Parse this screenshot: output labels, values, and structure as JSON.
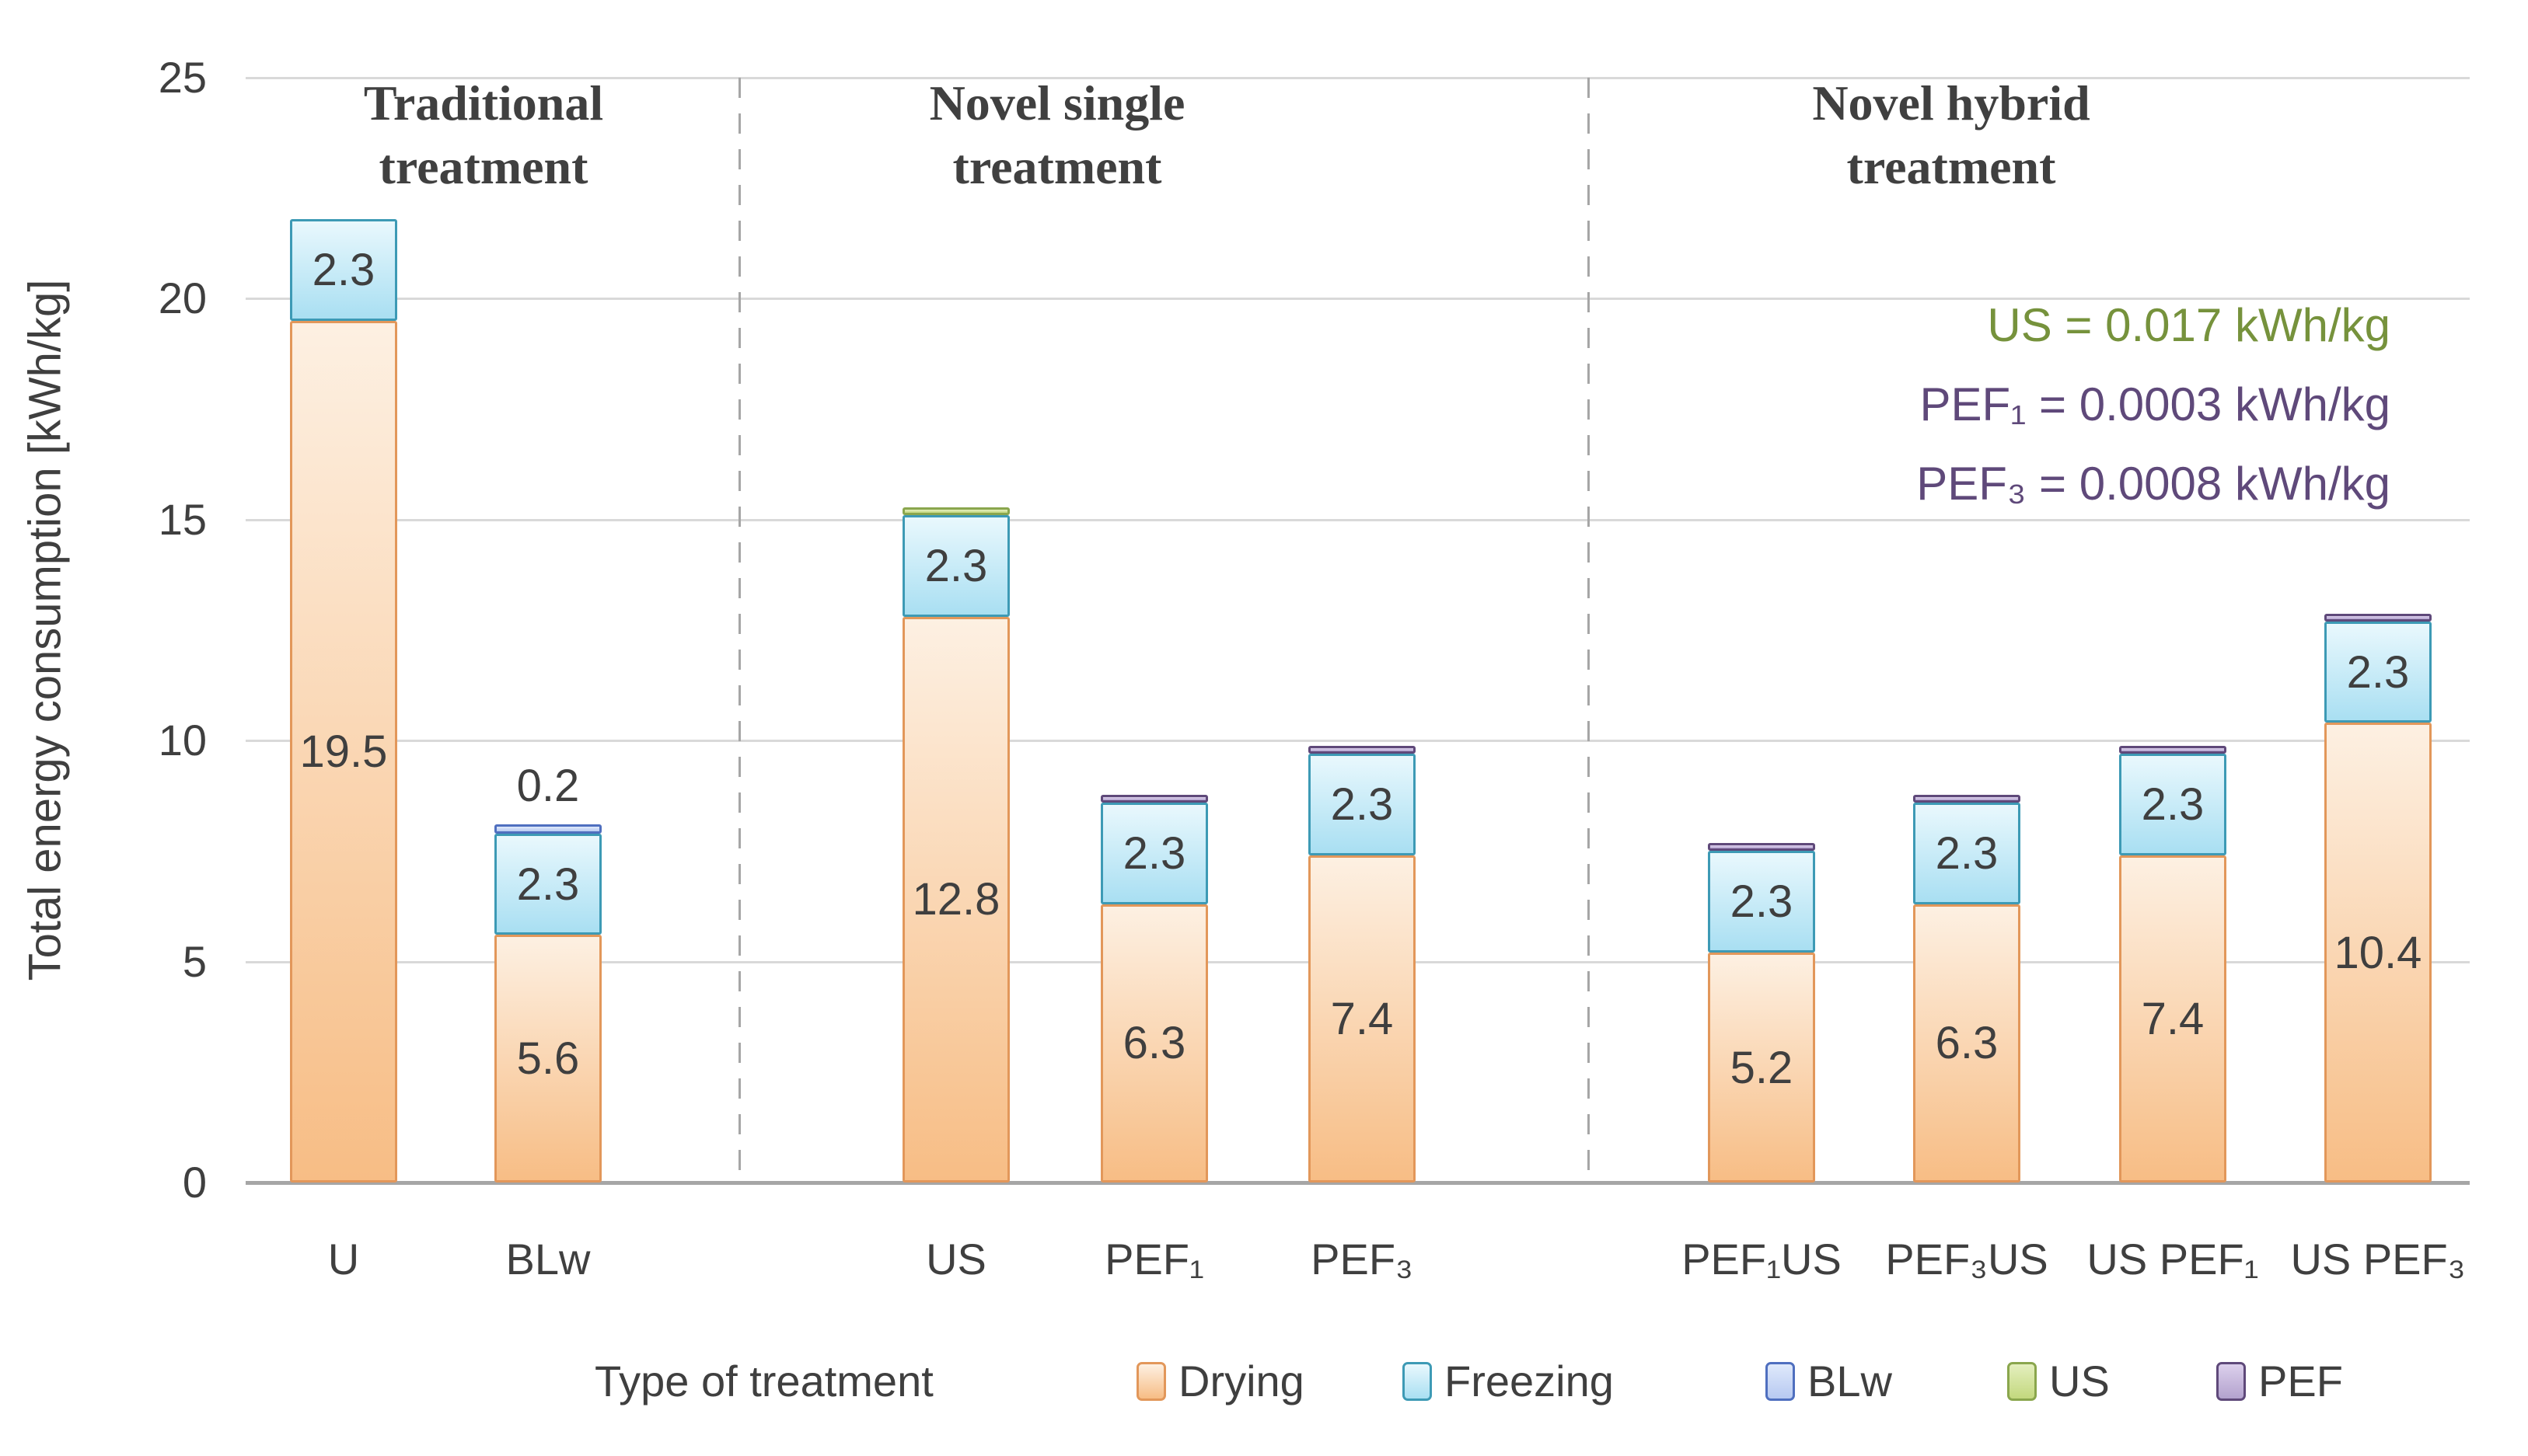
{
  "y_axis": {
    "title": "Total energy consumption [kWh/kg]",
    "ticks": [
      "0",
      "5",
      "10",
      "15",
      "20",
      "25"
    ],
    "max": 25
  },
  "x_axis": {
    "title": "Type of treatment"
  },
  "sections": [
    {
      "line1": "Traditional",
      "line2": "treatment"
    },
    {
      "line1": "Novel single",
      "line2": "treatment"
    },
    {
      "line1": "Novel hybrid",
      "line2": "treatment"
    }
  ],
  "annotations": [
    {
      "text": "US = 0.017 kWh/kg",
      "color": "#76923c"
    },
    {
      "text": "PEF₁ = 0.0003 kWh/kg",
      "color": "#5f497a"
    },
    {
      "text": "PEF₃ = 0.0008 kWh/kg",
      "color": "#5f497a"
    }
  ],
  "legend": [
    {
      "label": "Drying",
      "fill_top": "#fdf0e2",
      "fill_bottom": "#f7bd85",
      "border": "#e2975a"
    },
    {
      "label": "Freezing",
      "fill_top": "#e9f8fd",
      "fill_bottom": "#a9dff2",
      "border": "#3d9ab5"
    },
    {
      "label": "BLw",
      "fill_top": "#dfe9fb",
      "fill_bottom": "#b7c9f1",
      "border": "#4f6fbf"
    },
    {
      "label": "US",
      "fill_top": "#e4efbe",
      "fill_bottom": "#c3d87e",
      "border": "#8aa64d"
    },
    {
      "label": "PEF",
      "fill_top": "#dcd0ec",
      "fill_bottom": "#b3a2ce",
      "border": "#5f497a"
    }
  ],
  "chart_data": {
    "type": "bar",
    "stacked": true,
    "title": "",
    "xlabel": "Type of treatment",
    "ylabel": "Total energy consumption [kWh/kg]",
    "ylim": [
      0,
      25
    ],
    "grid": true,
    "legend_position": "bottom",
    "categories": [
      "U",
      "BLw",
      "US",
      "PEF₁",
      "PEF₃",
      "PEF₁US",
      "PEF₃US",
      "US PEF₁",
      "US PEF₃"
    ],
    "section_groups": [
      {
        "section": "Traditional treatment",
        "categories": [
          "U",
          "BLw"
        ]
      },
      {
        "section": "Novel single treatment",
        "categories": [
          "US",
          "PEF₁",
          "PEF₃"
        ]
      },
      {
        "section": "Novel hybrid treatment",
        "categories": [
          "PEF₁US",
          "PEF₃US",
          "US PEF₁",
          "US PEF₃"
        ]
      }
    ],
    "series": [
      {
        "name": "Drying",
        "labels": "inside",
        "values": [
          19.5,
          5.6,
          12.8,
          6.3,
          7.4,
          5.2,
          6.3,
          7.4,
          10.4
        ]
      },
      {
        "name": "Freezing",
        "labels": "inside",
        "values": [
          2.3,
          2.3,
          2.3,
          2.3,
          2.3,
          2.3,
          2.3,
          2.3,
          2.3
        ]
      },
      {
        "name": "BLw",
        "labels": "above",
        "values": [
          0,
          0.2,
          0,
          0,
          0,
          0,
          0,
          0,
          0
        ]
      },
      {
        "name": "US",
        "labels": "none",
        "values": [
          0,
          0,
          0.017,
          0,
          0,
          0.017,
          0.017,
          0.017,
          0.017
        ]
      },
      {
        "name": "PEF",
        "labels": "none",
        "values": [
          0,
          0,
          0,
          0.0003,
          0.0008,
          0.0003,
          0.0008,
          0.0003,
          0.0008
        ]
      }
    ]
  }
}
